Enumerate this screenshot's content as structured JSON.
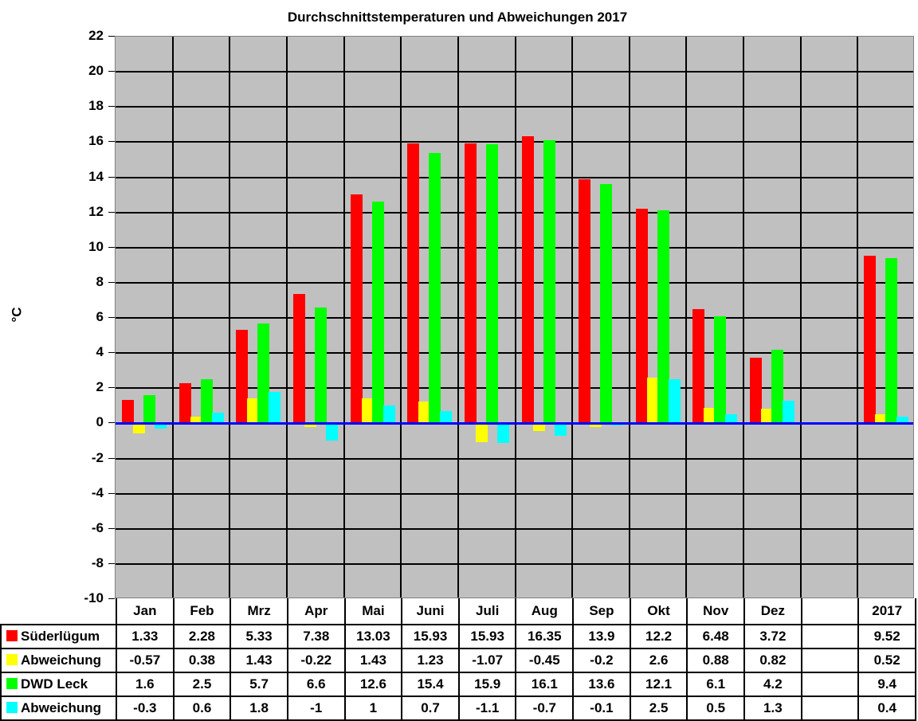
{
  "chart_data": {
    "type": "bar",
    "title": "Durchschnittstemperaturen und Abweichungen 2017",
    "xlabel": "",
    "ylabel": "°C",
    "ylim": [
      -10,
      22
    ],
    "yticks": [
      22,
      20,
      18,
      16,
      14,
      12,
      10,
      8,
      6,
      4,
      2,
      0,
      -2,
      -4,
      -6,
      -8,
      -10
    ],
    "grid": true,
    "legend_position": "table-below",
    "categories": [
      "Jan",
      "Feb",
      "Mrz",
      "Apr",
      "Mai",
      "Juni",
      "Juli",
      "Aug",
      "Sep",
      "Okt",
      "Nov",
      "Dez",
      "",
      "2017"
    ],
    "series": [
      {
        "name": "Süderlügum",
        "color": "#ff0000",
        "values": [
          1.33,
          2.28,
          5.33,
          7.38,
          13.03,
          15.93,
          15.93,
          16.35,
          13.9,
          12.2,
          6.48,
          3.72,
          null,
          9.52
        ],
        "labels": [
          "1.33",
          "2.28",
          "5.33",
          "7.38",
          "13.03",
          "15.93",
          "15.93",
          "16.35",
          "13.9",
          "12.2",
          "6.48",
          "3.72",
          "",
          "9.52"
        ]
      },
      {
        "name": "Abweichung",
        "color": "#ffff00",
        "values": [
          -0.57,
          0.38,
          1.43,
          -0.22,
          1.43,
          1.23,
          -1.07,
          -0.45,
          -0.2,
          2.6,
          0.88,
          0.82,
          null,
          0.52
        ],
        "labels": [
          "-0.57",
          "0.38",
          "1.43",
          "-0.22",
          "1.43",
          "1.23",
          "-1.07",
          "-0.45",
          "-0.2",
          "2.6",
          "0.88",
          "0.82",
          "",
          "0.52"
        ]
      },
      {
        "name": "DWD Leck",
        "color": "#00ff00",
        "values": [
          1.6,
          2.5,
          5.7,
          6.6,
          12.6,
          15.4,
          15.9,
          16.1,
          13.6,
          12.1,
          6.1,
          4.2,
          null,
          9.4
        ],
        "labels": [
          "1.6",
          "2.5",
          "5.7",
          "6.6",
          "12.6",
          "15.4",
          "15.9",
          "16.1",
          "13.6",
          "12.1",
          "6.1",
          "4.2",
          "",
          "9.4"
        ]
      },
      {
        "name": "Abweichung",
        "color": "#00ffff",
        "values": [
          -0.3,
          0.6,
          1.8,
          -1,
          1,
          0.7,
          -1.1,
          -0.7,
          -0.1,
          2.5,
          0.5,
          1.3,
          null,
          0.4
        ],
        "labels": [
          "-0.3",
          "0.6",
          "1.8",
          "-1",
          "1",
          "0.7",
          "-1.1",
          "-0.7",
          "-0.1",
          "2.5",
          "0.5",
          "1.3",
          "",
          "0.4"
        ]
      }
    ],
    "zero_line_color": "#0000ff",
    "plot_background": "#c0c0c0"
  }
}
